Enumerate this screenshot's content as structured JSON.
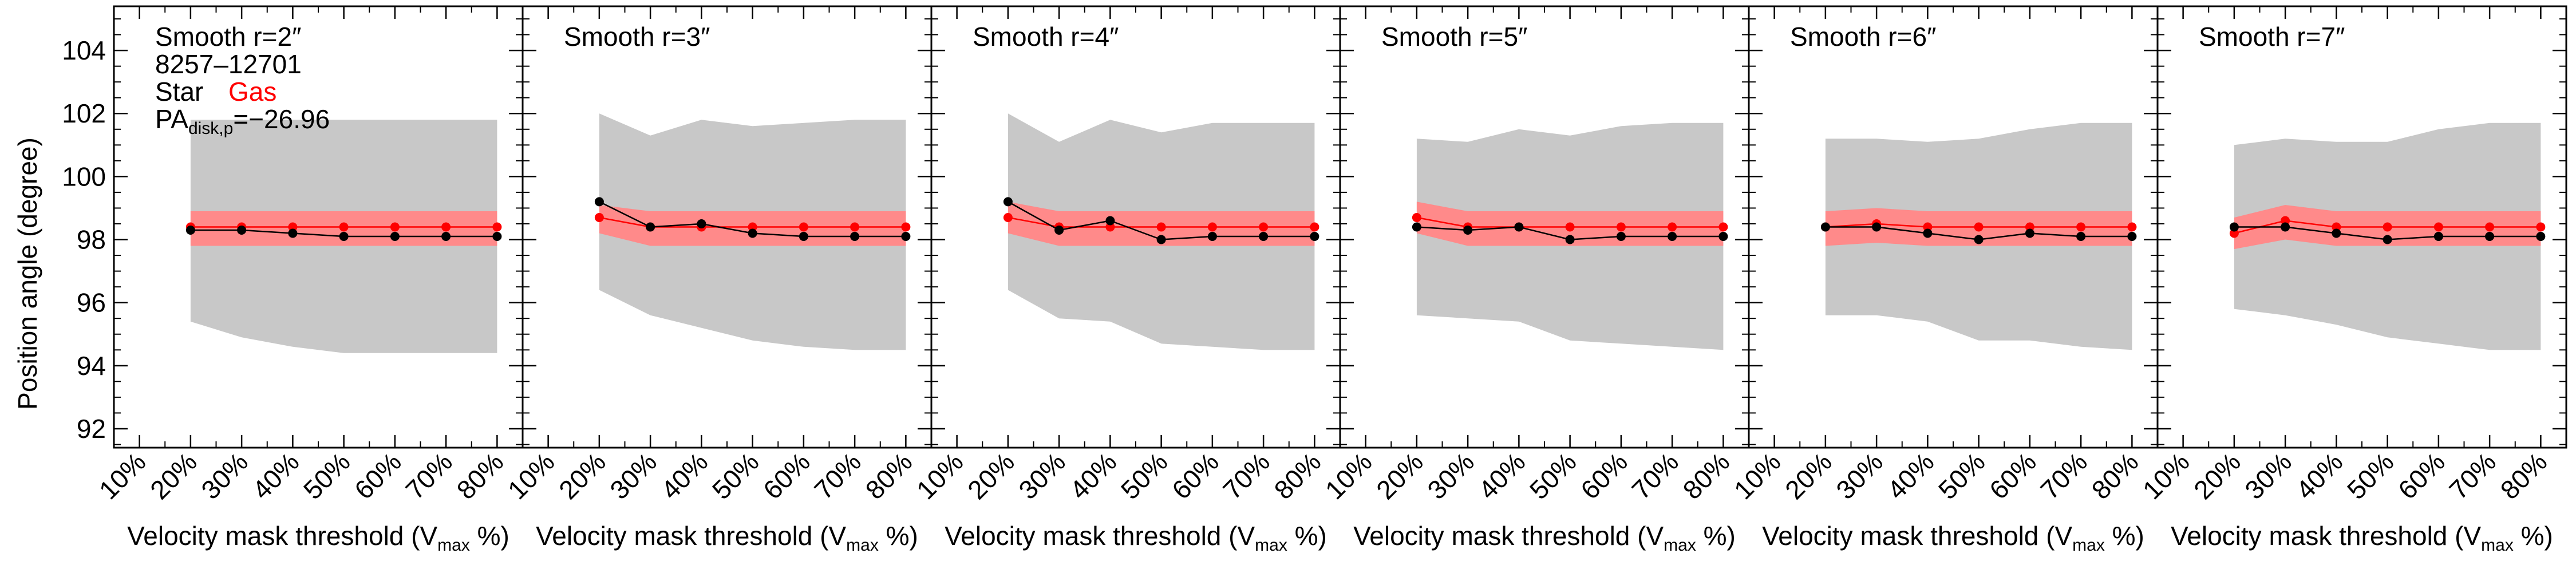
{
  "figure": {
    "ylabel": "Position angle (degree)",
    "info": {
      "id": "8257–12701",
      "star_label": "Star",
      "gas_label": "Gas",
      "pa_prefix": "PA",
      "pa_sub": "disk,p",
      "pa_value": "=−26.96"
    },
    "xlabel_main": "Velocity mask threshold (V",
    "xlabel_sub": "max",
    "xlabel_end": " %)",
    "colors": {
      "star": "#000000",
      "gas": "#ff0000",
      "gas_band": "#ff8a8a",
      "star_band": "#c8c8c8"
    }
  },
  "chart_data": [
    {
      "type": "line",
      "title": "Smooth r=2″",
      "xlabel": "Velocity mask threshold (Vmax %)",
      "ylabel": "Position angle (degree)",
      "x_ticks": [
        "10%",
        "20%",
        "30%",
        "40%",
        "50%",
        "60%",
        "70%",
        "80%"
      ],
      "x": [
        20,
        30,
        40,
        50,
        60,
        70,
        80
      ],
      "xlim": [
        5,
        85
      ],
      "ylim": [
        91.4,
        105.4
      ],
      "y_ticks": [
        92,
        94,
        96,
        98,
        100,
        102,
        104
      ],
      "series": [
        {
          "name": "Star",
          "values": [
            98.3,
            98.3,
            98.2,
            98.1,
            98.1,
            98.1,
            98.1
          ],
          "band_low": [
            95.4,
            94.9,
            94.6,
            94.4,
            94.4,
            94.4,
            94.4
          ],
          "band_high": [
            101.8,
            101.8,
            101.8,
            101.8,
            101.8,
            101.8,
            101.8
          ]
        },
        {
          "name": "Gas",
          "values": [
            98.4,
            98.4,
            98.4,
            98.4,
            98.4,
            98.4,
            98.4
          ],
          "band_low": [
            97.8,
            97.8,
            97.8,
            97.8,
            97.8,
            97.8,
            97.8
          ],
          "band_high": [
            98.9,
            98.9,
            98.9,
            98.9,
            98.9,
            98.9,
            98.9
          ]
        }
      ]
    },
    {
      "type": "line",
      "title": "Smooth r=3″",
      "xlabel": "Velocity mask threshold (Vmax %)",
      "x_ticks": [
        "10%",
        "20%",
        "30%",
        "40%",
        "50%",
        "60%",
        "70%",
        "80%"
      ],
      "x": [
        20,
        30,
        40,
        50,
        60,
        70,
        80
      ],
      "xlim": [
        5,
        85
      ],
      "ylim": [
        91.4,
        105.4
      ],
      "series": [
        {
          "name": "Star",
          "values": [
            99.2,
            98.4,
            98.5,
            98.2,
            98.1,
            98.1,
            98.1
          ],
          "band_low": [
            96.4,
            95.6,
            95.2,
            94.8,
            94.6,
            94.5,
            94.5
          ],
          "band_high": [
            102.0,
            101.3,
            101.8,
            101.6,
            101.7,
            101.8,
            101.8
          ]
        },
        {
          "name": "Gas",
          "values": [
            98.7,
            98.4,
            98.4,
            98.4,
            98.4,
            98.4,
            98.4
          ],
          "band_low": [
            98.2,
            97.8,
            97.8,
            97.8,
            97.8,
            97.8,
            97.8
          ],
          "band_high": [
            99.1,
            98.9,
            98.9,
            98.9,
            98.9,
            98.9,
            98.9
          ]
        }
      ]
    },
    {
      "type": "line",
      "title": "Smooth r=4″",
      "xlabel": "Velocity mask threshold (Vmax %)",
      "x_ticks": [
        "10%",
        "20%",
        "30%",
        "40%",
        "50%",
        "60%",
        "70%",
        "80%"
      ],
      "x": [
        20,
        30,
        40,
        50,
        60,
        70,
        80
      ],
      "xlim": [
        5,
        85
      ],
      "ylim": [
        91.4,
        105.4
      ],
      "series": [
        {
          "name": "Star",
          "values": [
            99.2,
            98.3,
            98.6,
            98.0,
            98.1,
            98.1,
            98.1
          ],
          "band_low": [
            96.4,
            95.5,
            95.4,
            94.7,
            94.6,
            94.5,
            94.5
          ],
          "band_high": [
            102.0,
            101.1,
            101.8,
            101.4,
            101.7,
            101.7,
            101.7
          ]
        },
        {
          "name": "Gas",
          "values": [
            98.7,
            98.4,
            98.4,
            98.4,
            98.4,
            98.4,
            98.4
          ],
          "band_low": [
            98.2,
            97.8,
            97.8,
            97.8,
            97.8,
            97.8,
            97.8
          ],
          "band_high": [
            99.2,
            98.9,
            98.9,
            98.9,
            98.9,
            98.9,
            98.9
          ]
        }
      ]
    },
    {
      "type": "line",
      "title": "Smooth r=5″",
      "xlabel": "Velocity mask threshold (Vmax %)",
      "x_ticks": [
        "10%",
        "20%",
        "30%",
        "40%",
        "50%",
        "60%",
        "70%",
        "80%"
      ],
      "x": [
        20,
        30,
        40,
        50,
        60,
        70,
        80
      ],
      "xlim": [
        5,
        85
      ],
      "ylim": [
        91.4,
        105.4
      ],
      "series": [
        {
          "name": "Star",
          "values": [
            98.4,
            98.3,
            98.4,
            98.0,
            98.1,
            98.1,
            98.1
          ],
          "band_low": [
            95.6,
            95.5,
            95.4,
            94.8,
            94.7,
            94.6,
            94.5
          ],
          "band_high": [
            101.2,
            101.1,
            101.5,
            101.3,
            101.6,
            101.7,
            101.7
          ]
        },
        {
          "name": "Gas",
          "values": [
            98.7,
            98.4,
            98.4,
            98.4,
            98.4,
            98.4,
            98.4
          ],
          "band_low": [
            98.2,
            97.8,
            97.8,
            97.8,
            97.8,
            97.8,
            97.8
          ],
          "band_high": [
            99.2,
            98.9,
            98.9,
            98.9,
            98.9,
            98.9,
            98.9
          ]
        }
      ]
    },
    {
      "type": "line",
      "title": "Smooth r=6″",
      "xlabel": "Velocity mask threshold (Vmax %)",
      "x_ticks": [
        "10%",
        "20%",
        "30%",
        "40%",
        "50%",
        "60%",
        "70%",
        "80%"
      ],
      "x": [
        20,
        30,
        40,
        50,
        60,
        70,
        80
      ],
      "xlim": [
        5,
        85
      ],
      "ylim": [
        91.4,
        105.4
      ],
      "series": [
        {
          "name": "Star",
          "values": [
            98.4,
            98.4,
            98.2,
            98.0,
            98.2,
            98.1,
            98.1
          ],
          "band_low": [
            95.6,
            95.6,
            95.4,
            94.8,
            94.8,
            94.6,
            94.5
          ],
          "band_high": [
            101.2,
            101.2,
            101.1,
            101.2,
            101.5,
            101.7,
            101.7
          ]
        },
        {
          "name": "Gas",
          "values": [
            98.4,
            98.5,
            98.4,
            98.4,
            98.4,
            98.4,
            98.4
          ],
          "band_low": [
            97.8,
            97.9,
            97.8,
            97.8,
            97.8,
            97.8,
            97.8
          ],
          "band_high": [
            98.9,
            99.0,
            98.9,
            98.9,
            98.9,
            98.9,
            98.9
          ]
        }
      ]
    },
    {
      "type": "line",
      "title": "Smooth r=7″",
      "xlabel": "Velocity mask threshold (Vmax %)",
      "x_ticks": [
        "10%",
        "20%",
        "30%",
        "40%",
        "50%",
        "60%",
        "70%",
        "80%"
      ],
      "x": [
        20,
        30,
        40,
        50,
        60,
        70,
        80
      ],
      "xlim": [
        5,
        85
      ],
      "ylim": [
        91.4,
        105.4
      ],
      "series": [
        {
          "name": "Star",
          "values": [
            98.4,
            98.4,
            98.2,
            98.0,
            98.1,
            98.1,
            98.1
          ],
          "band_low": [
            95.8,
            95.6,
            95.3,
            94.9,
            94.7,
            94.5,
            94.5
          ],
          "band_high": [
            101.0,
            101.2,
            101.1,
            101.1,
            101.5,
            101.7,
            101.7
          ]
        },
        {
          "name": "Gas",
          "values": [
            98.2,
            98.6,
            98.4,
            98.4,
            98.4,
            98.4,
            98.4
          ],
          "band_low": [
            97.7,
            98.0,
            97.8,
            97.8,
            97.8,
            97.8,
            97.8
          ],
          "band_high": [
            98.7,
            99.1,
            98.9,
            98.9,
            98.9,
            98.9,
            98.9
          ]
        }
      ]
    }
  ]
}
